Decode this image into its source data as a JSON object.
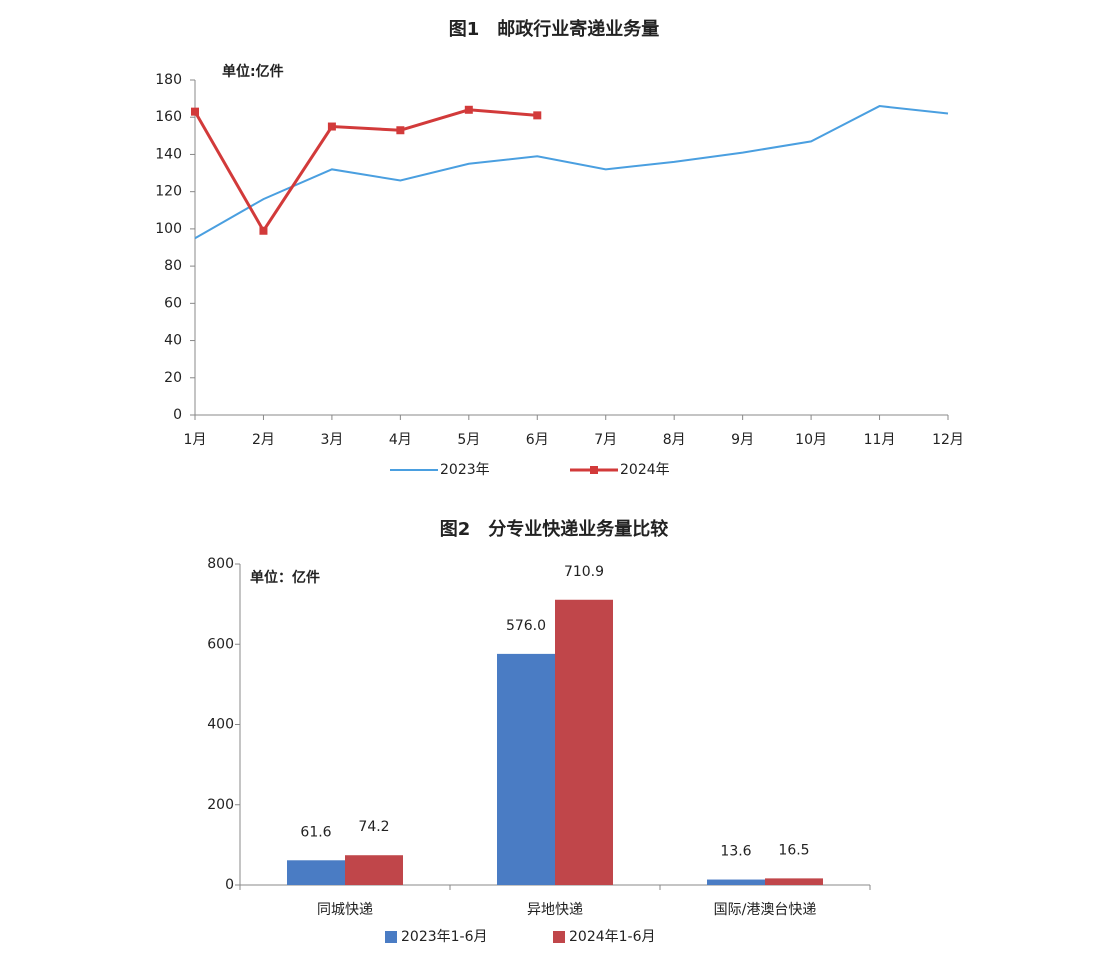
{
  "chart_data": [
    {
      "type": "line",
      "title": "图1　邮政行业寄递业务量",
      "unit": "单位:亿件",
      "categories": [
        "1月",
        "2月",
        "3月",
        "4月",
        "5月",
        "6月",
        "7月",
        "8月",
        "9月",
        "10月",
        "11月",
        "12月"
      ],
      "series": [
        {
          "name": "2023年",
          "color": "#4a9fe0",
          "values": [
            95,
            116,
            132,
            126,
            135,
            139,
            132,
            136,
            141,
            147,
            166,
            162
          ]
        },
        {
          "name": "2024年",
          "color": "#d23a3a",
          "values": [
            163,
            99,
            155,
            153,
            164,
            161,
            null,
            null,
            null,
            null,
            null,
            null
          ]
        }
      ],
      "ylim": [
        0,
        180
      ],
      "yticks": [
        0,
        20,
        40,
        60,
        80,
        100,
        120,
        140,
        160,
        180
      ]
    },
    {
      "type": "bar",
      "title": "图2　分专业快递业务量比较",
      "unit": "单位：亿件",
      "categories": [
        "同城快递",
        "异地快递",
        "国际/港澳台快递"
      ],
      "series": [
        {
          "name": "2023年1-6月",
          "color": "#4a7cc4",
          "values": [
            61.6,
            576.0,
            13.6
          ],
          "value_labels": [
            "61.6",
            "576.0",
            "13.6"
          ]
        },
        {
          "name": "2024年1-6月",
          "color": "#c0464a",
          "values": [
            74.2,
            710.9,
            16.5
          ],
          "value_labels": [
            "74.2",
            "710.9",
            "16.5"
          ]
        }
      ],
      "ylim": [
        0,
        800
      ],
      "yticks": [
        0,
        200,
        400,
        600,
        800
      ]
    }
  ]
}
